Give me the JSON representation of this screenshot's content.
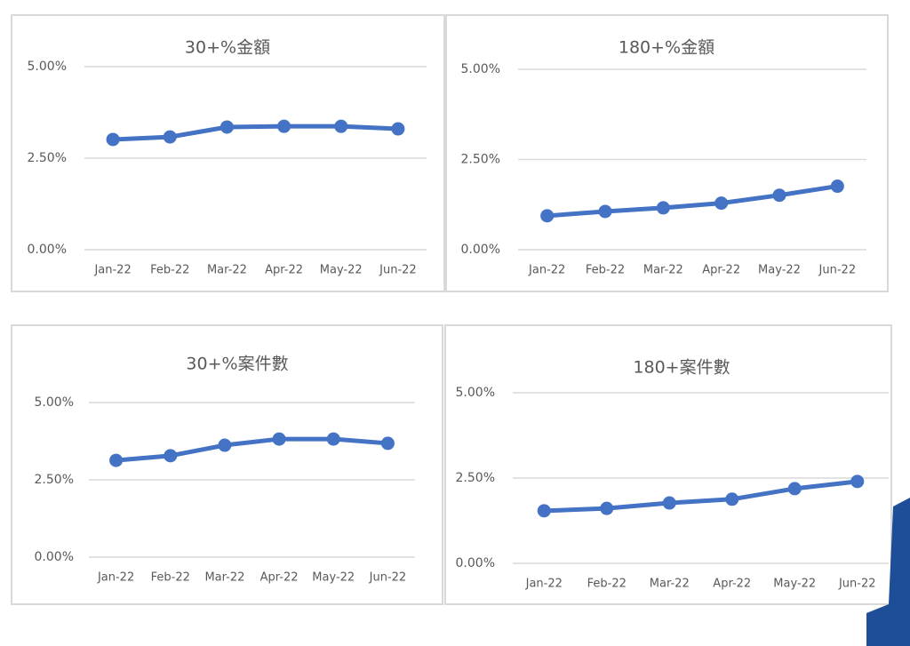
{
  "chart_data": [
    {
      "type": "line",
      "title": "30+%金額",
      "categories": [
        "Jan-22",
        "Feb-22",
        "Mar-22",
        "Apr-22",
        "May-22",
        "Jun-22"
      ],
      "series": [
        {
          "color": "#4472c4",
          "values": [
            3.01,
            3.08,
            3.35,
            3.37,
            3.37,
            3.3
          ]
        }
      ],
      "ylim": [
        0,
        5
      ],
      "yticks": [
        {
          "value": 0,
          "label": "0.00%"
        },
        {
          "value": 2.5,
          "label": "2.50%"
        },
        {
          "value": 5,
          "label": "5.00%"
        }
      ],
      "grid": true
    },
    {
      "type": "line",
      "title": "180+%金額",
      "categories": [
        "Jan-22",
        "Feb-22",
        "Mar-22",
        "Apr-22",
        "May-22",
        "Jun-22"
      ],
      "series": [
        {
          "color": "#4472c4",
          "values": [
            0.94,
            1.06,
            1.16,
            1.29,
            1.51,
            1.76
          ]
        }
      ],
      "ylim": [
        0,
        5
      ],
      "yticks": [
        {
          "value": 0,
          "label": "0.00%"
        },
        {
          "value": 2.5,
          "label": "2.50%"
        },
        {
          "value": 5,
          "label": "5.00%"
        }
      ],
      "grid": true
    },
    {
      "type": "line",
      "title": "30+%案件數",
      "categories": [
        "Jan-22",
        "Feb-22",
        "Mar-22",
        "Apr-22",
        "May-22",
        "Jun-22"
      ],
      "series": [
        {
          "color": "#4472c4",
          "values": [
            3.13,
            3.28,
            3.62,
            3.82,
            3.82,
            3.68
          ]
        }
      ],
      "ylim": [
        0,
        5
      ],
      "yticks": [
        {
          "value": 0,
          "label": "0.00%"
        },
        {
          "value": 2.5,
          "label": "2.50%"
        },
        {
          "value": 5,
          "label": "5.00%"
        }
      ],
      "grid": true
    },
    {
      "type": "line",
      "title": "180+案件數",
      "categories": [
        "Jan-22",
        "Feb-22",
        "Mar-22",
        "Apr-22",
        "May-22",
        "Jun-22"
      ],
      "series": [
        {
          "color": "#4472c4",
          "values": [
            1.54,
            1.61,
            1.77,
            1.88,
            2.19,
            2.4
          ]
        }
      ],
      "ylim": [
        0,
        5
      ],
      "yticks": [
        {
          "value": 0,
          "label": "0.00%"
        },
        {
          "value": 2.5,
          "label": "2.50%"
        },
        {
          "value": 5,
          "label": "5.00%"
        }
      ],
      "grid": true
    }
  ]
}
